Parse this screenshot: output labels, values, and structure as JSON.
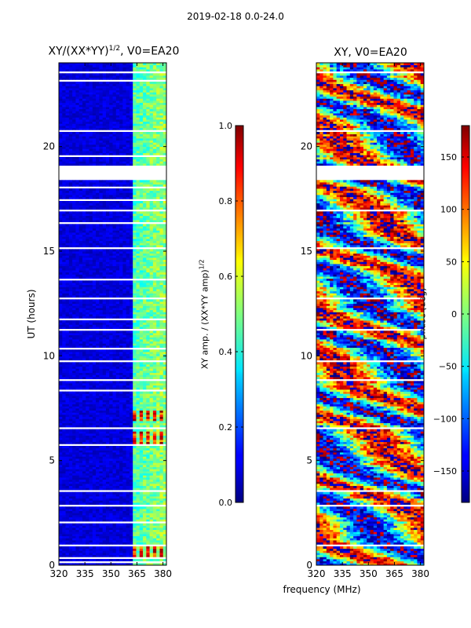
{
  "figure": {
    "suptitle": "2019-02-18 0.0-24.0",
    "xlabel_shared": "frequency (MHz)",
    "colormap": "jet"
  },
  "chart_data": [
    {
      "type": "heatmap",
      "title_main": "XY/(XX*YY)",
      "title_sup": "1/2",
      "title_tail": ", V0=EA20",
      "xlabel": "frequency (MHz)",
      "ylabel": "UT (hours)",
      "xlim": [
        320,
        382
      ],
      "ylim": [
        0,
        24
      ],
      "xticks": [
        "320",
        "335",
        "350",
        "365",
        "380"
      ],
      "xtick_values": [
        320,
        335,
        350,
        365,
        380
      ],
      "yticks": [
        "0",
        "5",
        "10",
        "15",
        "20"
      ],
      "ytick_values": [
        0,
        5,
        10,
        15,
        20
      ],
      "colorbar": {
        "label_main": "XY amp. / (XX*YY amp)",
        "label_sup": "1/2",
        "range": [
          0.0,
          1.0
        ],
        "ticks": [
          "0.0",
          "0.2",
          "0.4",
          "0.6",
          "0.8",
          "1.0"
        ],
        "tick_values": [
          0.0,
          0.2,
          0.4,
          0.6,
          0.8,
          1.0
        ]
      },
      "gaps_ut": [
        [
          0.15,
          0.22
        ],
        [
          0.33,
          0.37
        ],
        [
          0.95,
          1.0
        ],
        [
          1.8,
          1.85
        ],
        [
          2.05,
          2.1
        ],
        [
          2.85,
          2.9
        ],
        [
          3.55,
          3.6
        ],
        [
          4.3,
          4.35
        ],
        [
          4.6,
          4.65
        ],
        [
          5.3,
          5.35
        ],
        [
          5.5,
          5.55
        ],
        [
          5.75,
          5.8
        ],
        [
          6.1,
          6.15
        ],
        [
          6.5,
          6.6
        ],
        [
          7.4,
          7.45
        ],
        [
          7.9,
          7.95
        ],
        [
          8.35,
          8.4
        ],
        [
          8.85,
          8.9
        ],
        [
          9.4,
          9.45
        ],
        [
          9.75,
          9.8
        ],
        [
          10.35,
          10.4
        ],
        [
          11.2,
          11.3
        ],
        [
          11.75,
          11.8
        ],
        [
          12.3,
          12.35
        ],
        [
          12.7,
          12.8
        ],
        [
          13.6,
          13.7
        ],
        [
          13.9,
          13.95
        ],
        [
          14.3,
          14.35
        ],
        [
          14.8,
          14.85
        ],
        [
          15.1,
          15.2
        ],
        [
          15.8,
          15.85
        ],
        [
          16.3,
          16.4
        ],
        [
          16.95,
          17.0
        ],
        [
          17.45,
          17.5
        ],
        [
          18.0,
          18.1
        ],
        [
          18.4,
          19.1
        ],
        [
          19.5,
          19.6
        ],
        [
          19.9,
          19.95
        ],
        [
          20.7,
          20.85
        ],
        [
          21.9,
          21.95
        ],
        [
          22.4,
          22.45
        ],
        [
          22.8,
          22.85
        ],
        [
          23.15,
          23.2
        ],
        [
          23.55,
          23.6
        ]
      ],
      "high_flag_bands_ut": [
        [
          0.4,
          0.95
        ],
        [
          5.8,
          6.4
        ],
        [
          6.9,
          7.4
        ]
      ]
    },
    {
      "type": "heatmap",
      "title": "XY, V0=EA20",
      "xlabel": "frequency (MHz)",
      "ylabel": "",
      "xlim": [
        320,
        382
      ],
      "ylim": [
        0,
        24
      ],
      "xticks": [
        "320",
        "335",
        "350",
        "365",
        "380"
      ],
      "xtick_values": [
        320,
        335,
        350,
        365,
        380
      ],
      "yticks": [
        "0",
        "5",
        "10",
        "15",
        "20"
      ],
      "ytick_values": [
        0,
        5,
        10,
        15,
        20
      ],
      "colorbar": {
        "label": "phase (deg)",
        "range": [
          -180,
          180
        ],
        "ticks": [
          "−150",
          "−100",
          "−50",
          "0",
          "50",
          "100",
          "150"
        ],
        "tick_values": [
          -150,
          -100,
          -50,
          0,
          50,
          100,
          150
        ]
      },
      "gaps_ut": [
        [
          0.95,
          1.0
        ],
        [
          1.8,
          1.85
        ],
        [
          2.85,
          2.9
        ],
        [
          3.55,
          3.6
        ],
        [
          5.3,
          5.35
        ],
        [
          6.5,
          6.6
        ],
        [
          7.9,
          7.95
        ],
        [
          8.85,
          8.9
        ],
        [
          9.75,
          9.8
        ],
        [
          11.2,
          11.3
        ],
        [
          12.7,
          12.8
        ],
        [
          15.1,
          15.2
        ],
        [
          16.95,
          17.0
        ],
        [
          18.4,
          19.1
        ],
        [
          19.9,
          19.95
        ],
        [
          20.7,
          20.85
        ],
        [
          22.4,
          22.45
        ],
        [
          23.55,
          23.6
        ]
      ]
    }
  ]
}
